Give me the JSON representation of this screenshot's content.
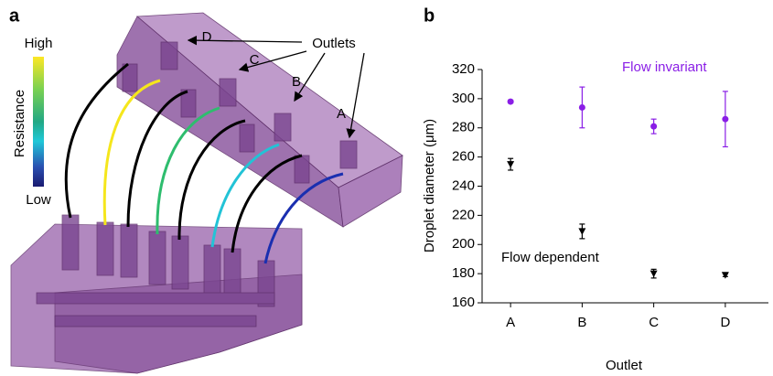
{
  "panel_a": {
    "label": "a",
    "outlets_label": "Outlets",
    "outlet_letters": [
      "D",
      "C",
      "B",
      "A"
    ],
    "colorbar": {
      "high": "High",
      "low": "Low",
      "title": "Resistance"
    }
  },
  "chart_data": {
    "type": "scatter",
    "panel_label": "b",
    "x_label": "Outlet",
    "y_label": "Droplet diameter (μm)",
    "categories": [
      "A",
      "B",
      "C",
      "D"
    ],
    "ylim": [
      160,
      320
    ],
    "yticks": [
      160,
      180,
      200,
      220,
      240,
      260,
      280,
      300,
      320
    ],
    "series": [
      {
        "name": "Flow invariant",
        "color": "#8a1ee6",
        "marker": "circle",
        "values": [
          298,
          294,
          281,
          286
        ],
        "errors": [
          1,
          14,
          5,
          19
        ]
      },
      {
        "name": "Flow dependent",
        "color": "#000000",
        "marker": "triangle-down",
        "values": [
          255,
          209,
          180,
          179
        ],
        "errors": [
          4,
          5,
          3,
          1
        ]
      }
    ]
  }
}
